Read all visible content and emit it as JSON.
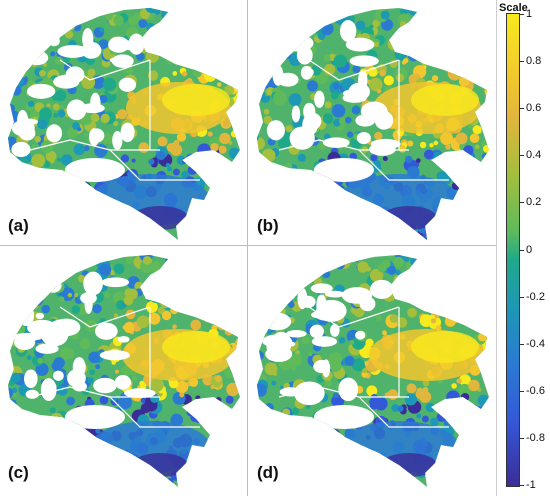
{
  "colorbar": {
    "title": "Scale",
    "ticks": [
      "1",
      "0.8",
      "0.6",
      "0.4",
      "0.2",
      "0",
      "-0.2",
      "-0.4",
      "-0.6",
      "-0.8",
      "-1"
    ],
    "colors": [
      "#f7ea1d",
      "#f2c62e",
      "#e1b63c",
      "#a4be3e",
      "#5fbb5a",
      "#1fa98a",
      "#1d98b5",
      "#2b7ad2",
      "#3459d8",
      "#3b2d98"
    ]
  },
  "panels": [
    {
      "label": "(a)"
    },
    {
      "label": "(b)"
    },
    {
      "label": "(c)"
    },
    {
      "label": "(d)"
    }
  ]
}
